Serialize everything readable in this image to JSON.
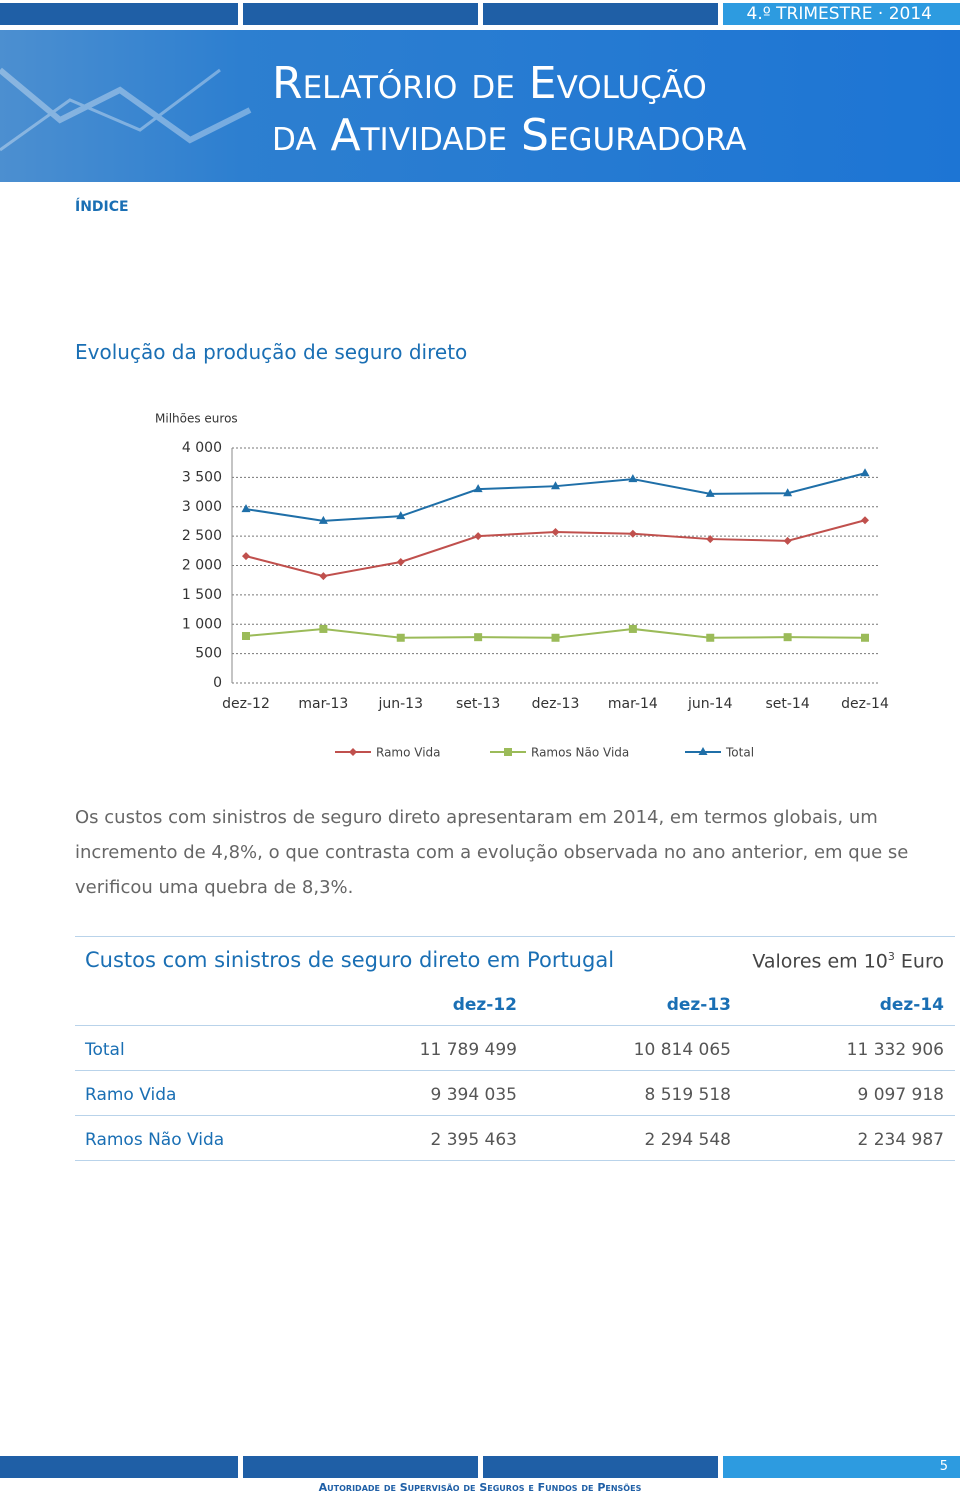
{
  "header": {
    "period": "4.º TRIMESTRE · 2014",
    "title_line1": "Relatório de Evolução",
    "title_line2": "da Atividade Seguradora"
  },
  "nav": "ÍNDICE",
  "section_title": "Evolução da produção de seguro direto",
  "chart_data": {
    "type": "line",
    "y_label": "Milhões euros",
    "categories": [
      "dez-12",
      "mar-13",
      "jun-13",
      "set-13",
      "dez-13",
      "mar-14",
      "jun-14",
      "set-14",
      "dez-14"
    ],
    "series": [
      {
        "name": "Ramo Vida",
        "color": "#c0504d",
        "marker": "diamond",
        "values": [
          2160,
          1820,
          2060,
          2500,
          2570,
          2540,
          2450,
          2420,
          2770
        ]
      },
      {
        "name": "Ramos Não Vida",
        "color": "#9bbb59",
        "marker": "square",
        "values": [
          800,
          920,
          770,
          780,
          770,
          920,
          770,
          780,
          770
        ]
      },
      {
        "name": "Total",
        "color": "#1f6fa8",
        "marker": "triangle",
        "values": [
          2960,
          2760,
          2840,
          3300,
          3350,
          3470,
          3220,
          3230,
          3570
        ]
      }
    ],
    "ylim": [
      0,
      4000
    ],
    "yticks": [
      0,
      500,
      {
        "value": 1000,
        "label": "1 000"
      },
      {
        "value": 1500,
        "label": "1 500"
      },
      {
        "value": 2000,
        "label": "2 000"
      },
      {
        "value": 2500,
        "label": "2 500"
      },
      {
        "value": 3000,
        "label": "3 000"
      },
      {
        "value": 3500,
        "label": "3 500"
      },
      {
        "value": 4000,
        "label": "4 000"
      }
    ],
    "grid": true,
    "legend": "bottom"
  },
  "paragraph": "Os custos com sinistros de seguro direto apresentaram em 2014, em termos globais, um incremento de 4,8%, o que contrasta com a evolução observada no ano anterior, em que se verificou uma quebra de 8,3%.",
  "table": {
    "title": "Custos com sinistros de seguro direto em Portugal",
    "units_prefix": "Valores em 10",
    "units_exp": "3",
    "units_suffix": "Euro",
    "columns": [
      "dez-12",
      "dez-13",
      "dez-14"
    ],
    "rows": [
      [
        "Total",
        "11 789 499",
        "10 814 065",
        "11 332 906"
      ],
      [
        "Ramo Vida",
        "9 394 035",
        "8 519 518",
        "9 097 918"
      ],
      [
        "Ramos Não Vida",
        "2 395 463",
        "2 294 548",
        "2 234 987"
      ]
    ]
  },
  "footer": {
    "org": "Autoridade de Supervisão de Seguros e Fundos de Pensões",
    "page": "5"
  }
}
